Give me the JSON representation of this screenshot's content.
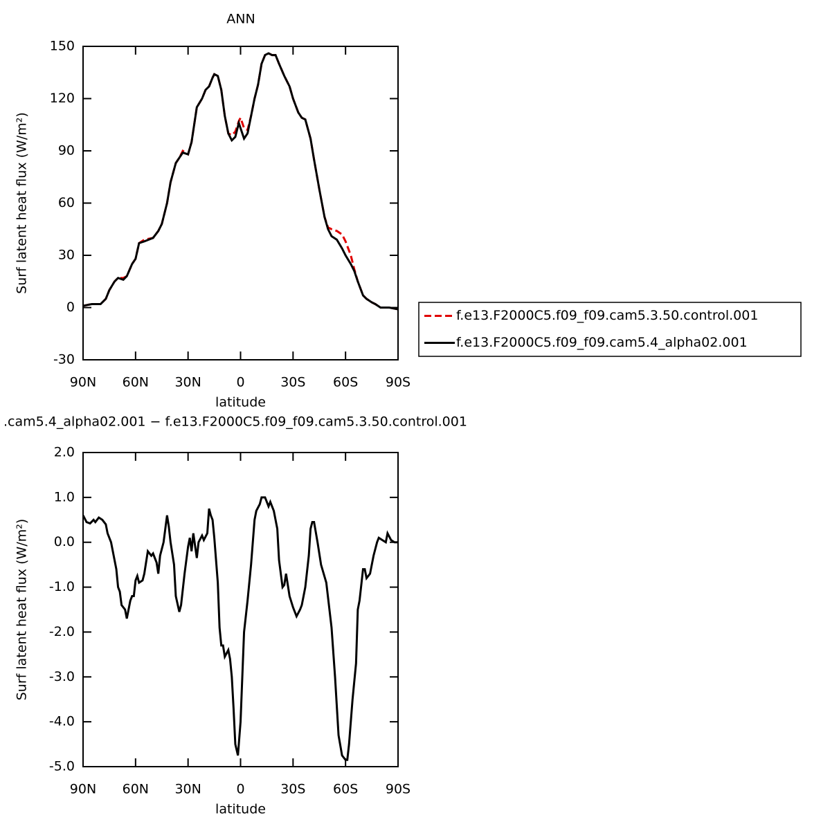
{
  "chart_data": [
    {
      "type": "line",
      "title": "ANN",
      "xlabel": "latitude",
      "ylabel": "Surf latent heat flux (W/m²)",
      "xlim": [
        90,
        -90
      ],
      "ylim": [
        -30,
        150
      ],
      "xticks": [
        {
          "value": 90,
          "label": "90N"
        },
        {
          "value": 60,
          "label": "60N"
        },
        {
          "value": 30,
          "label": "30N"
        },
        0,
        {
          "value": -30,
          "label": "30S"
        },
        {
          "value": -60,
          "label": "60S"
        },
        {
          "value": -90,
          "label": "90S"
        }
      ],
      "yticks": [
        -30,
        0,
        30,
        60,
        90,
        120,
        150
      ],
      "legend": "right",
      "x": [
        90,
        85,
        80,
        77,
        75,
        72,
        70,
        67,
        65,
        62,
        60,
        58,
        55,
        50,
        47,
        45,
        42,
        40,
        37,
        35,
        33,
        30,
        28,
        25,
        22,
        20,
        18,
        16,
        15,
        13,
        11,
        9,
        7,
        5,
        3,
        1,
        0,
        -2,
        -4,
        -6,
        -8,
        -10,
        -12,
        -14,
        -16,
        -18,
        -20,
        -22,
        -25,
        -28,
        -30,
        -33,
        -35,
        -37,
        -40,
        -42,
        -45,
        -48,
        -50,
        -52,
        -55,
        -58,
        -60,
        -63,
        -65,
        -67,
        -70,
        -72,
        -75,
        -77,
        -80,
        -85,
        -90
      ],
      "series": [
        {
          "name": "f.e13.F2000C5.f09_f09.cam5.3.50.control.001",
          "color": "#e00000",
          "linestyle": "dashed",
          "values": [
            1,
            2,
            2,
            5,
            10,
            15,
            17,
            17,
            18,
            25,
            28,
            37,
            39,
            40,
            44,
            48,
            60,
            72,
            83,
            86,
            90,
            88,
            95,
            115,
            120,
            125,
            127,
            132,
            134,
            133,
            125,
            110,
            100,
            99,
            101,
            107,
            109,
            103,
            102,
            110,
            120,
            128,
            140,
            145,
            146,
            145,
            145,
            140,
            133,
            127,
            120,
            112,
            109,
            108,
            97,
            85,
            68,
            52,
            46,
            45,
            44,
            42,
            38,
            30,
            22,
            15,
            7,
            5,
            3,
            2,
            0,
            0,
            -1
          ]
        },
        {
          "name": "f.e13.F2000C5.f09_f09.cam5.4_alpha02.001",
          "color": "#000000",
          "linestyle": "solid",
          "values": [
            1,
            2,
            2,
            5,
            10,
            15,
            17,
            16,
            18,
            25,
            28,
            37,
            38,
            40,
            44,
            48,
            60,
            72,
            83,
            86,
            89,
            88,
            95,
            115,
            120,
            125,
            127,
            132,
            134,
            133,
            125,
            110,
            100,
            96,
            98,
            106,
            103,
            97,
            100,
            110,
            120,
            128,
            140,
            145,
            146,
            145,
            145,
            140,
            133,
            127,
            120,
            112,
            109,
            108,
            97,
            85,
            68,
            52,
            45,
            41,
            39,
            34,
            30,
            25,
            21,
            15,
            7,
            5,
            3,
            2,
            0,
            0,
            -1
          ]
        }
      ]
    },
    {
      "type": "line",
      "title": ".cam5.4_alpha02.001 − f.e13.F2000C5.f09_f09.cam5.3.50.control.001",
      "xlabel": "latitude",
      "ylabel": "Surf latent heat flux (W/m²)",
      "xlim": [
        90,
        -90
      ],
      "ylim": [
        -5,
        2
      ],
      "xticks": [
        {
          "value": 90,
          "label": "90N"
        },
        {
          "value": 60,
          "label": "60N"
        },
        {
          "value": 30,
          "label": "30N"
        },
        0,
        {
          "value": -30,
          "label": "30S"
        },
        {
          "value": -60,
          "label": "60S"
        },
        {
          "value": -90,
          "label": "90S"
        }
      ],
      "yticks": [
        {
          "value": -5,
          "label": "-5.0"
        },
        {
          "value": -4,
          "label": "-4.0"
        },
        {
          "value": -3,
          "label": "-3.0"
        },
        {
          "value": -2,
          "label": "-2.0"
        },
        {
          "value": -1,
          "label": "-1.0"
        },
        {
          "value": 0,
          "label": "0.0"
        },
        {
          "value": 1,
          "label": "1.0"
        },
        {
          "value": 2,
          "label": "2.0"
        }
      ],
      "x": [
        90,
        88,
        86,
        84,
        83,
        81,
        79,
        77,
        76,
        74,
        73,
        71,
        70,
        69,
        68,
        66,
        65,
        63,
        62,
        61,
        60,
        59,
        58,
        56,
        55,
        53,
        51,
        50,
        48,
        47,
        46,
        44,
        42,
        41,
        40,
        38,
        37,
        35,
        34,
        32,
        30,
        29,
        28,
        27,
        25,
        24,
        22,
        21,
        19,
        18,
        17,
        16,
        15,
        13,
        12,
        11,
        10,
        9,
        7,
        6,
        5,
        4,
        3,
        1.5,
        0,
        -1,
        -2,
        -4,
        -6,
        -8,
        -9,
        -11,
        -12,
        -14,
        -16,
        -17,
        -19,
        -21,
        -22,
        -23,
        -24,
        -25,
        -26,
        -28,
        -30,
        -32,
        -34,
        -35,
        -36,
        -37,
        -39,
        -40,
        -41,
        -42,
        -44,
        -46,
        -49,
        -52,
        -54,
        -56,
        -58,
        -60,
        -61,
        -62,
        -64,
        -66,
        -67,
        -68,
        -70,
        -71,
        -72,
        -74,
        -76,
        -78,
        -79,
        -81,
        -83,
        -84,
        -86,
        -88,
        -90
      ],
      "series": [
        {
          "color": "#000000",
          "linestyle": "solid",
          "values": [
            0.6,
            0.45,
            0.42,
            0.5,
            0.45,
            0.55,
            0.5,
            0.4,
            0.2,
            0,
            -0.2,
            -0.6,
            -1,
            -1.1,
            -1.4,
            -1.5,
            -1.7,
            -1.3,
            -1.2,
            -1.2,
            -0.85,
            -0.75,
            -0.9,
            -0.85,
            -0.7,
            -0.2,
            -0.3,
            -0.25,
            -0.45,
            -0.7,
            -0.3,
            0,
            0.6,
            0.35,
            0,
            -0.5,
            -1.2,
            -1.55,
            -1.4,
            -0.7,
            -0.1,
            0.1,
            -0.2,
            0.2,
            -0.35,
            0,
            0.15,
            0.05,
            0.2,
            0.75,
            0.6,
            0.5,
            0.1,
            -0.9,
            -1.9,
            -2.3,
            -2.3,
            -2.55,
            -2.4,
            -2.6,
            -3,
            -3.7,
            -4.5,
            -4.75,
            -4,
            -3,
            -2,
            -1.3,
            -0.5,
            0.5,
            0.7,
            0.85,
            1,
            1,
            0.8,
            0.9,
            0.7,
            0.3,
            -0.4,
            -0.7,
            -1,
            -0.95,
            -0.7,
            -1.2,
            -1.45,
            -1.65,
            -1.5,
            -1.4,
            -1.2,
            -1,
            -0.3,
            0.3,
            0.45,
            0.45,
            0,
            -0.5,
            -0.9,
            -1.9,
            -3,
            -4.3,
            -4.75,
            -4.85,
            -4.85,
            -4.5,
            -3.5,
            -2.7,
            -1.5,
            -1.3,
            -0.6,
            -0.6,
            -0.8,
            -0.7,
            -0.3,
            0,
            0.1,
            0.05,
            0,
            0.2,
            0.05,
            0,
            0
          ]
        }
      ]
    }
  ]
}
